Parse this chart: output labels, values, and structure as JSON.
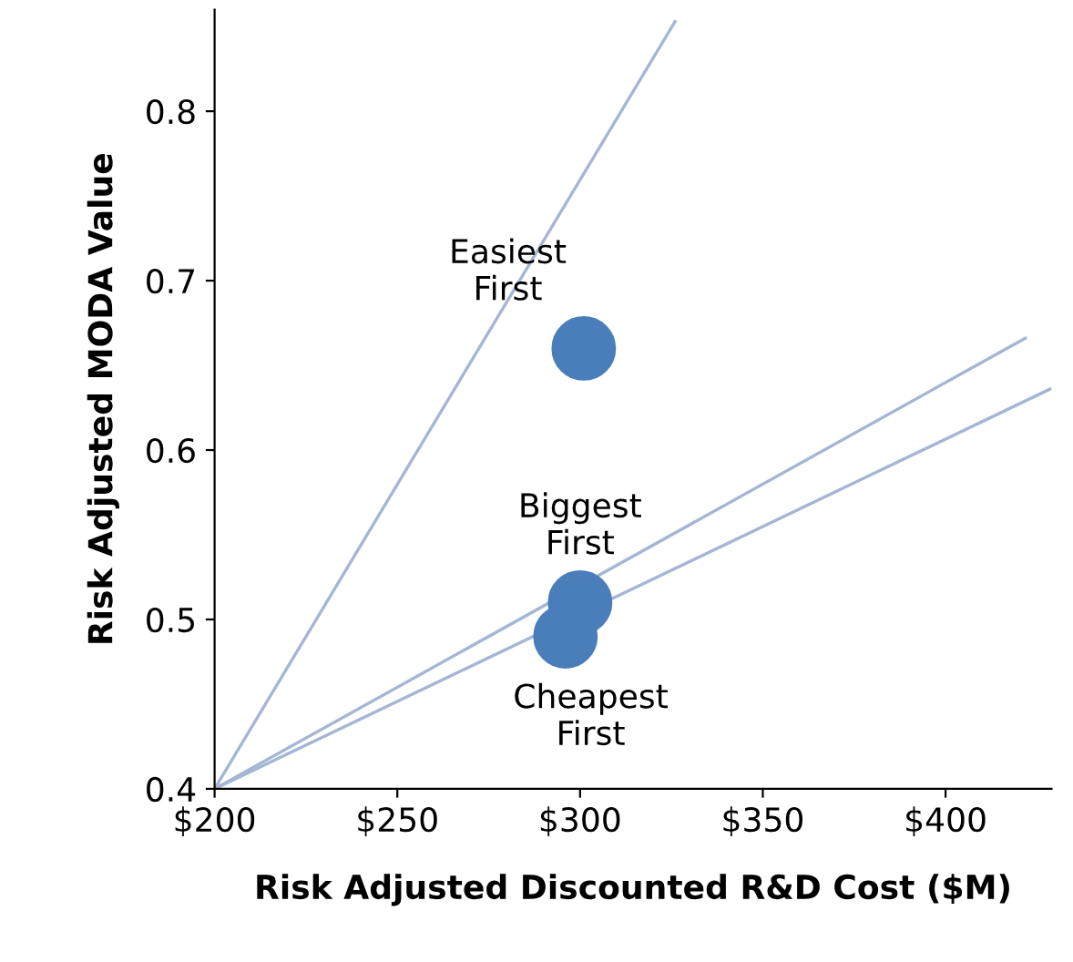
{
  "chart_data": {
    "type": "line",
    "xlabel": "Risk Adjusted Discounted R&D Cost ($M)",
    "ylabel": "Risk Adjusted MODA Value",
    "series": [
      {
        "color": "#a3b6d3",
        "x": [
          200,
          326
        ],
        "values": [
          0.4,
          0.853
        ],
        "marker": "none"
      },
      {
        "color": "#a3b6d3",
        "x": [
          200,
          421.8
        ],
        "values": [
          0.4,
          0.666
        ],
        "marker": "none"
      },
      {
        "color": "#a3b6d3",
        "x": [
          200,
          428.6
        ],
        "values": [
          0.4,
          0.636
        ],
        "marker": "none"
      },
      {
        "type": "scatter",
        "color": "#4a7ebb",
        "x": [
          301,
          300,
          296
        ],
        "values": [
          0.66,
          0.51,
          0.49
        ],
        "marker": "circle"
      }
    ],
    "annotations": [
      {
        "text": "Easiest\nFirst",
        "x": 301,
        "y": 0.66
      },
      {
        "text": "Biggest\nFirst",
        "x": 300,
        "y": 0.51
      },
      {
        "text": "Cheapest\nFirst",
        "x": 296,
        "y": 0.49
      }
    ],
    "xlim": [
      200,
      429
    ],
    "ylim": [
      0.4,
      0.86
    ],
    "xticks": [
      {
        "value": 200,
        "label": "$200"
      },
      {
        "value": 250,
        "label": "$250"
      },
      {
        "value": 300,
        "label": "$300"
      },
      {
        "value": 350,
        "label": "$350"
      },
      {
        "value": 400,
        "label": "$400"
      }
    ],
    "yticks": [
      0.4,
      0.5,
      0.6,
      0.7,
      0.8
    ],
    "grid": false,
    "legend": false
  }
}
